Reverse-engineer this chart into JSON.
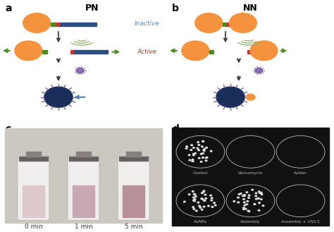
{
  "panel_labels": [
    "a",
    "b",
    "c",
    "d"
  ],
  "panel_a_title": "PN",
  "panel_b_title": "NN",
  "inactive_label": "Inactive",
  "active_label": "Active",
  "inactive_color": "#4a90d9",
  "active_color": "#cc3333",
  "orange_color": "#F5923E",
  "green_color": "#4a8a20",
  "red_color": "#cc3333",
  "blue_color": "#2b5080",
  "dark_navy": "#1a2e5a",
  "purple_color": "#7b5ea7",
  "purple_dark": "#5a3d8a",
  "background_color": "#ffffff",
  "tube_labels": [
    "0 min",
    "1 min",
    "5 min"
  ],
  "plate_labels_top": [
    "Control",
    "Vancomycin",
    "AuVan"
  ],
  "plate_labels_bottom": [
    "AuNPs",
    "Assembly",
    "Assembly + US0.5"
  ],
  "label_fontsize": 9,
  "title_fontsize": 9
}
